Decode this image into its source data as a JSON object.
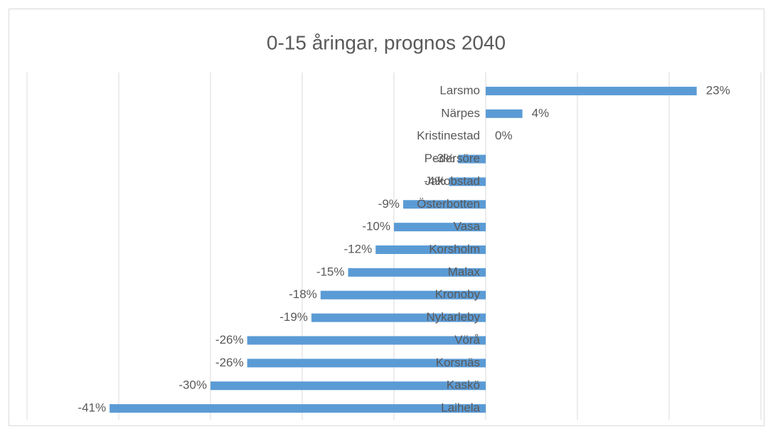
{
  "chart_data": {
    "type": "barh",
    "title": "0-15 åringar, prognos 2040",
    "categories": [
      "Larsmo",
      "Närpes",
      "Kristinestad",
      "Pedersöre",
      "Jakobstad",
      "Österbotten",
      "Vasa",
      "Korsholm",
      "Malax",
      "Kronoby",
      "Nykarleby",
      "Vörå",
      "Korsnäs",
      "Kaskö",
      "Laihela"
    ],
    "values": [
      23,
      4,
      0,
      -3,
      -4,
      -9,
      -10,
      -12,
      -15,
      -18,
      -19,
      -26,
      -26,
      -30,
      -41
    ],
    "value_labels": [
      "23%",
      "4%",
      "0%",
      "-3%",
      "-4%",
      "-9%",
      "-10%",
      "-12%",
      "-15%",
      "-18%",
      "-19%",
      "-26%",
      "-26%",
      "-30%",
      "-41%"
    ],
    "color": "#5b9bd5",
    "xlim": [
      -50,
      30
    ],
    "xticks": [
      -50,
      -40,
      -30,
      -20,
      -10,
      0,
      10,
      20,
      30
    ],
    "grid": true
  }
}
